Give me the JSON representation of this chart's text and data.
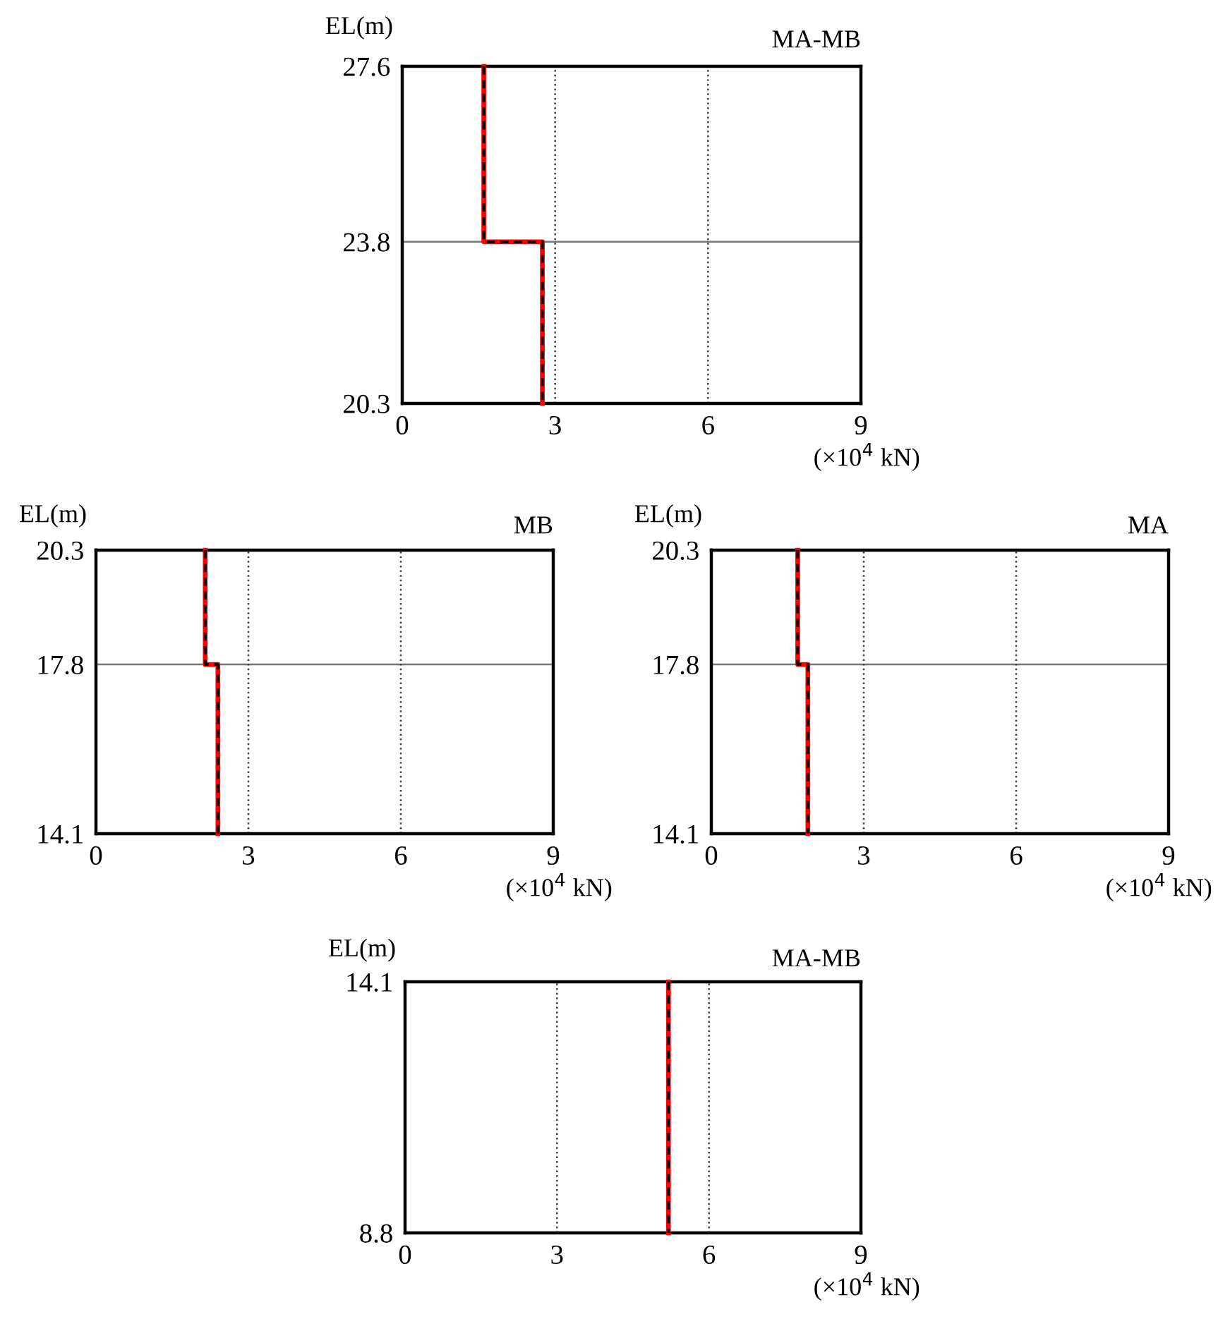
{
  "chart_data": [
    {
      "type": "line",
      "title": "MA-MB",
      "ylabel": "EL(m)",
      "xlabel": "(×10$^{4}$ kN)",
      "xlim": [
        0,
        9
      ],
      "xticks": [
        0,
        3,
        6,
        9
      ],
      "ylim": [
        20.3,
        27.6
      ],
      "yticks": [
        20.3,
        23.8,
        27.6
      ],
      "grid": "x",
      "ref_lines": [
        {
          "axis": "y",
          "value": 23.8,
          "color": "#777777"
        }
      ],
      "series": [
        {
          "color": "#ff0000",
          "line_style": "solid",
          "x": [
            1.6,
            1.6,
            2.75,
            2.75
          ],
          "values": [
            27.6,
            23.8,
            23.8,
            20.3
          ]
        },
        {
          "color": "#000000",
          "line_style": "dashed",
          "x": [
            1.6,
            1.6,
            2.75,
            2.75
          ],
          "values": [
            27.6,
            23.8,
            23.8,
            20.3
          ]
        }
      ]
    },
    {
      "type": "line",
      "title": "MB",
      "ylabel": "EL(m)",
      "xlabel": "(×10$^{4}$ kN)",
      "xlim": [
        0,
        9
      ],
      "xticks": [
        0,
        3,
        6,
        9
      ],
      "ylim": [
        14.1,
        20.3
      ],
      "yticks": [
        14.1,
        17.8,
        20.3
      ],
      "grid": "x",
      "ref_lines": [
        {
          "axis": "y",
          "value": 17.8,
          "color": "#777777"
        }
      ],
      "series": [
        {
          "color": "#ff0000",
          "line_style": "solid",
          "x": [
            2.15,
            2.15,
            2.4,
            2.4
          ],
          "values": [
            20.3,
            17.8,
            17.8,
            14.1
          ]
        },
        {
          "color": "#000000",
          "line_style": "dashed",
          "x": [
            2.15,
            2.15,
            2.4,
            2.4
          ],
          "values": [
            20.3,
            17.8,
            17.8,
            14.1
          ]
        }
      ]
    },
    {
      "type": "line",
      "title": "MA",
      "ylabel": "EL(m)",
      "xlabel": "(×10$^{4}$ kN)",
      "xlim": [
        0,
        9
      ],
      "xticks": [
        0,
        3,
        6,
        9
      ],
      "ylim": [
        14.1,
        20.3
      ],
      "yticks": [
        14.1,
        17.8,
        20.3
      ],
      "grid": "x",
      "ref_lines": [
        {
          "axis": "y",
          "value": 17.8,
          "color": "#777777"
        }
      ],
      "series": [
        {
          "color": "#ff0000",
          "line_style": "solid",
          "x": [
            1.7,
            1.7,
            1.9,
            1.9
          ],
          "values": [
            20.3,
            17.8,
            17.8,
            14.1
          ]
        },
        {
          "color": "#000000",
          "line_style": "dashed",
          "x": [
            1.7,
            1.7,
            1.9,
            1.9
          ],
          "values": [
            20.3,
            17.8,
            17.8,
            14.1
          ]
        }
      ]
    },
    {
      "type": "line",
      "title": "MA-MB",
      "ylabel": "EL(m)",
      "xlabel": "(×10$^{4}$ kN)",
      "xlim": [
        0,
        9
      ],
      "xticks": [
        0,
        3,
        6,
        9
      ],
      "ylim": [
        8.8,
        14.1
      ],
      "yticks": [
        8.8,
        14.1
      ],
      "grid": "x",
      "series": [
        {
          "color": "#ff0000",
          "line_style": "solid",
          "x": [
            5.2,
            5.2
          ],
          "values": [
            14.1,
            8.8
          ]
        },
        {
          "color": "#000000",
          "line_style": "dashed",
          "x": [
            5.2,
            5.2
          ],
          "values": [
            14.1,
            8.8
          ]
        }
      ]
    }
  ]
}
